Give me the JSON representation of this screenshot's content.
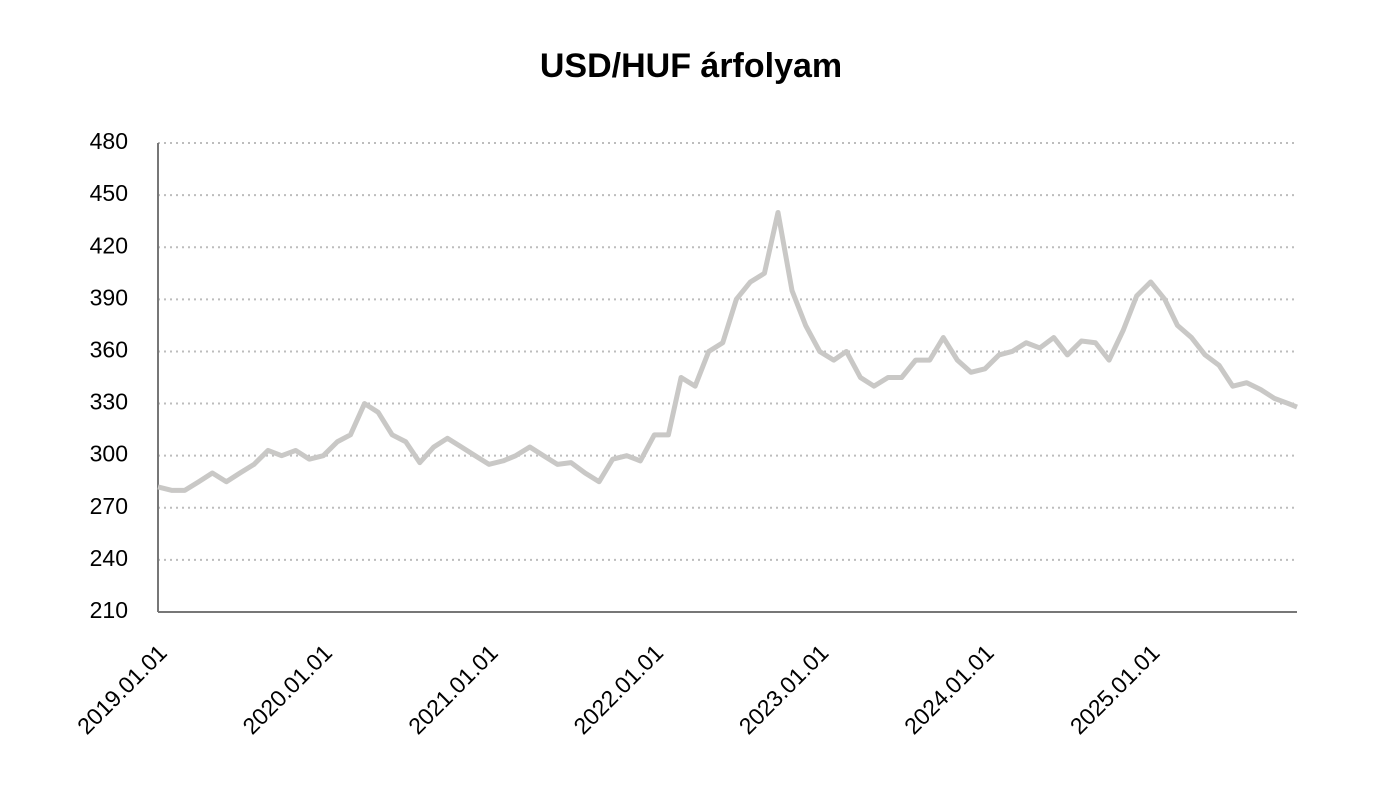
{
  "chart_data": {
    "type": "line",
    "title": "USD/HUF árfolyam",
    "x": [
      "2019.01.01",
      "2019.02.01",
      "2019.03.01",
      "2019.04.01",
      "2019.05.01",
      "2019.06.01",
      "2019.07.01",
      "2019.08.01",
      "2019.09.01",
      "2019.10.01",
      "2019.11.01",
      "2019.12.01",
      "2020.01.01",
      "2020.02.01",
      "2020.03.01",
      "2020.04.01",
      "2020.05.01",
      "2020.06.01",
      "2020.07.01",
      "2020.08.01",
      "2020.09.01",
      "2020.10.01",
      "2020.11.01",
      "2020.12.01",
      "2021.01.01",
      "2021.02.01",
      "2021.03.01",
      "2021.04.01",
      "2021.05.01",
      "2021.06.01",
      "2021.07.01",
      "2021.08.01",
      "2021.09.01",
      "2021.10.01",
      "2021.11.01",
      "2021.12.01",
      "2022.01.01",
      "2022.02.01",
      "2022.03.01",
      "2022.04.01",
      "2022.05.01",
      "2022.06.01",
      "2022.07.01",
      "2022.08.01",
      "2022.09.01",
      "2022.10.01",
      "2022.11.01",
      "2022.12.01",
      "2023.01.01",
      "2023.02.01",
      "2023.03.01",
      "2023.04.01",
      "2023.05.01",
      "2023.06.01",
      "2023.07.01",
      "2023.08.01",
      "2023.09.01",
      "2023.10.01",
      "2023.11.01",
      "2023.12.01",
      "2024.01.01",
      "2024.02.01",
      "2024.03.01",
      "2024.04.01",
      "2024.05.01",
      "2024.06.01",
      "2024.07.01",
      "2024.08.01",
      "2024.09.01",
      "2024.10.01",
      "2024.11.01",
      "2024.12.01",
      "2025.01.01",
      "2025.02.01",
      "2025.03.01",
      "2025.04.01",
      "2025.05.01",
      "2025.06.01",
      "2025.07.01",
      "2025.08.01",
      "2025.09.01",
      "2025.10.01",
      "2025.11.01",
      "2025.11.20"
    ],
    "series": [
      {
        "name": "USD/HUF",
        "color": "#c9c8c6",
        "values": [
          282,
          280,
          280,
          285,
          290,
          285,
          290,
          295,
          303,
          300,
          303,
          298,
          300,
          308,
          312,
          330,
          325,
          312,
          308,
          296,
          305,
          310,
          305,
          300,
          295,
          297,
          300,
          305,
          300,
          295,
          296,
          290,
          285,
          298,
          300,
          297,
          312,
          312,
          345,
          340,
          360,
          365,
          390,
          400,
          405,
          440,
          395,
          375,
          360,
          355,
          360,
          345,
          340,
          345,
          345,
          355,
          355,
          368,
          355,
          348,
          350,
          358,
          360,
          365,
          362,
          368,
          358,
          366,
          365,
          355,
          372,
          392,
          400,
          390,
          375,
          368,
          358,
          352,
          340,
          342,
          338,
          333,
          330,
          328
        ]
      }
    ],
    "xlim": [
      "2019.01.01",
      "2025.11.20"
    ],
    "xticks": [
      "2019.01.01",
      "2020.01.01",
      "2021.01.01",
      "2022.01.01",
      "2023.01.01",
      "2024.01.01",
      "2025.01.01"
    ],
    "ylim": [
      210,
      480
    ],
    "yticks": [
      210,
      240,
      270,
      300,
      330,
      360,
      390,
      420,
      450,
      480
    ],
    "grid": true
  }
}
